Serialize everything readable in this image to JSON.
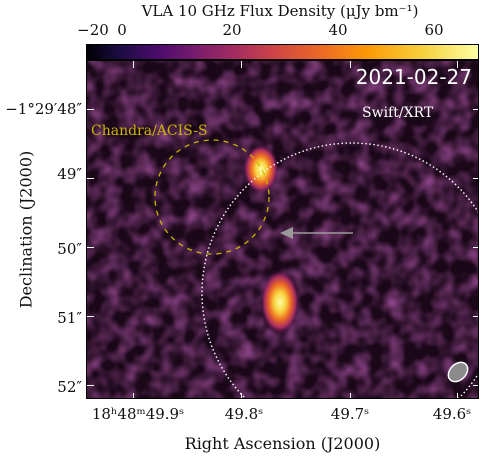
{
  "colorbar": {
    "title": "VLA 10 GHz Flux Density (μJy bm⁻¹)",
    "ticks": [
      "−20",
      "0",
      "20",
      "40",
      "60"
    ],
    "range": [
      -20,
      70
    ],
    "colormap": "inferno"
  },
  "map": {
    "date": "2021-02-27",
    "chandra_label": "Chandra/ACIS-S",
    "swift_label": "Swift/XRT",
    "chandra_color": "#c9b400",
    "swift_color": "#ffffff",
    "arrow_color": "#9a9a9a"
  },
  "axes": {
    "ylabel": "Declination (J2000)",
    "xlabel": "Right Ascension (J2000)",
    "yticks": [
      "−1°29′48″",
      "49″",
      "50″",
      "51″",
      "52″"
    ],
    "xticks": [
      "18ʰ48ᵐ49.9ˢ",
      "49.8ˢ",
      "49.7ˢ",
      "49.6ˢ"
    ]
  }
}
